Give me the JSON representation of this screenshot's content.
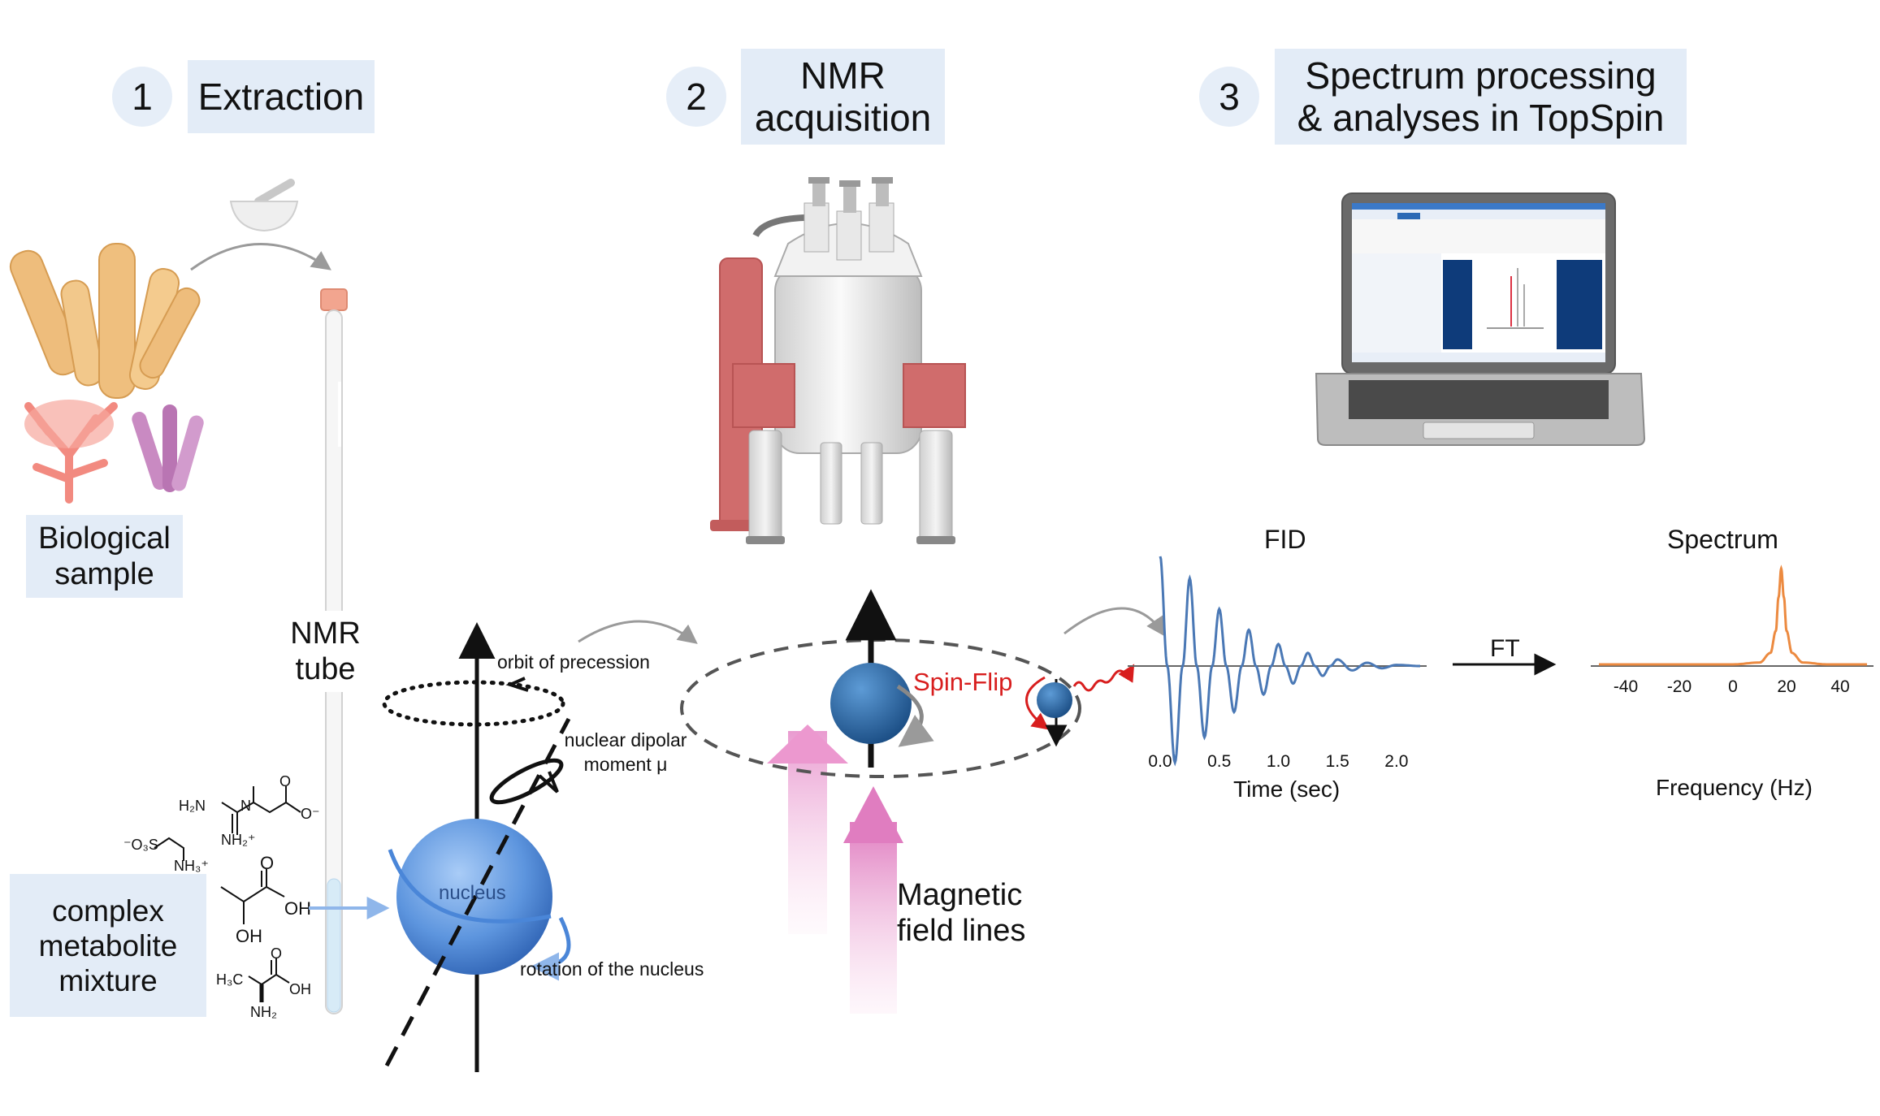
{
  "steps": [
    {
      "number": "1",
      "title": "Extraction"
    },
    {
      "number": "2",
      "title_line1": "NMR",
      "title_line2": "acquisition"
    },
    {
      "number": "3",
      "title_line1": "Spectrum processing",
      "title_line2": "& analyses in TopSpin"
    }
  ],
  "labels": {
    "biological_sample_line1": "Biological",
    "biological_sample_line2": "sample",
    "nmr_tube_line1": "NMR",
    "nmr_tube_line2": "tube",
    "mixture_line1": "complex",
    "mixture_line2": "metabolite",
    "mixture_line3": "mixture",
    "orbit": "orbit of precession",
    "dipolar_line1": "nuclear dipolar",
    "dipolar_line2": "moment μ",
    "nucleus": "nucleus",
    "rotation": "rotation of the nucleus",
    "spin_flip": "Spin-Flip",
    "magnetic_line1": "Magnetic",
    "magnetic_line2": "field lines",
    "fid_title": "FID",
    "spectrum_title": "Spectrum",
    "ft": "FT",
    "time_axis": "Time (sec)",
    "freq_axis": "Frequency (Hz)"
  },
  "molecules": {
    "creatine": {
      "h2n": "H₂N",
      "n": "N",
      "nh2": "NH₂⁺",
      "o": "O",
      "o_minus": "O⁻"
    },
    "taurine": {
      "so3": "⁻O₃S",
      "nh3": "NH₃⁺"
    },
    "lactate": {
      "o": "O",
      "oh1": "OH",
      "oh2": "OH"
    },
    "alanine": {
      "h3c": "H₃C",
      "o": "O",
      "oh": "OH",
      "nh2": "NH₂"
    }
  },
  "colors": {
    "label_bg": "#e3ecf7",
    "nucleus_blue": "#4a86d8",
    "spin_blue": "#2a6aa8",
    "spin_flip_red": "#d81e1e",
    "field_pink": "#e58cc8",
    "fid_line": "#4a78b5",
    "spectrum_line": "#ec8a40",
    "magnet_red": "#d46a6a"
  },
  "chart_data": [
    {
      "type": "line",
      "title": "FID",
      "xlabel": "Time (sec)",
      "ylabel": "",
      "x_ticks": [
        "0.0",
        "0.5",
        "1.0",
        "1.5",
        "2.0"
      ],
      "xlim": [
        0.0,
        2.2
      ],
      "series": [
        {
          "x": [
            0.0,
            0.06,
            0.125,
            0.19,
            0.25,
            0.31,
            0.375,
            0.44,
            0.5,
            0.56,
            0.625,
            0.69,
            0.75,
            0.81,
            0.875,
            0.94,
            1.0,
            1.06,
            1.125,
            1.19,
            1.25,
            1.31,
            1.375,
            1.44,
            1.5,
            1.625,
            1.75,
            1.875,
            2.0,
            2.2
          ],
          "y": [
            1.0,
            0.0,
            -0.88,
            0.0,
            0.8,
            0.0,
            -0.65,
            0.0,
            0.52,
            0.0,
            -0.42,
            0.0,
            0.33,
            0.0,
            -0.26,
            0.0,
            0.2,
            0.0,
            -0.16,
            0.0,
            0.12,
            0.0,
            -0.09,
            0.0,
            0.06,
            -0.04,
            0.03,
            -0.02,
            0.01,
            0.0
          ]
        }
      ]
    },
    {
      "type": "line",
      "title": "Spectrum",
      "xlabel": "Frequency (Hz)",
      "ylabel": "",
      "x_ticks": [
        "-40",
        "-20",
        "0",
        "20",
        "40"
      ],
      "xlim": [
        -50,
        50
      ],
      "series": [
        {
          "x": [
            -50,
            -20,
            0,
            10,
            14,
            16,
            17,
            18,
            19,
            20,
            22,
            26,
            35,
            50
          ],
          "y": [
            0,
            0,
            0,
            0.02,
            0.12,
            0.35,
            0.7,
            1.0,
            0.7,
            0.35,
            0.12,
            0.02,
            0,
            0
          ]
        }
      ]
    }
  ]
}
